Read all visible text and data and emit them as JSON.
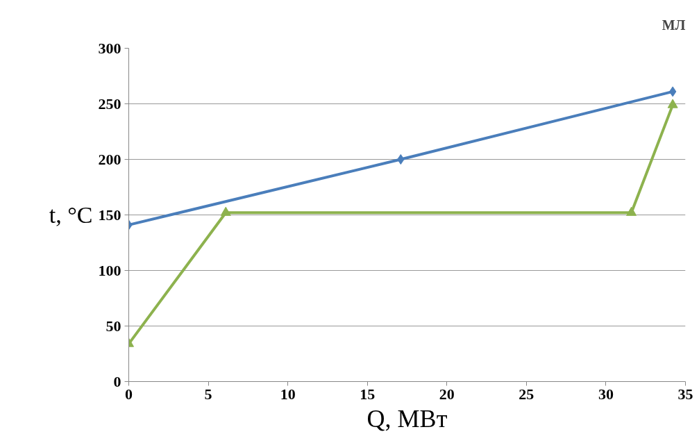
{
  "chart_data": {
    "type": "line",
    "xlabel": "Q, МВт",
    "ylabel": "t, °C",
    "annotations": [
      "МЛ"
    ],
    "xlim": [
      0,
      35
    ],
    "xticks": [
      0,
      5,
      10,
      15,
      20,
      25,
      30,
      35
    ],
    "ylim": [
      0,
      300
    ],
    "yticks": [
      0,
      50,
      100,
      150,
      200,
      250,
      300
    ],
    "grid": "y",
    "series": [
      {
        "color": "#4a7ebb",
        "marker": "diamond",
        "x": [
          0,
          17.1,
          34.2
        ],
        "values": [
          141,
          200,
          261
        ]
      },
      {
        "color": "#8db24e",
        "marker": "triangle",
        "x": [
          0,
          6.1,
          31.6,
          34.2
        ],
        "values": [
          34,
          152,
          152,
          249
        ]
      }
    ]
  }
}
